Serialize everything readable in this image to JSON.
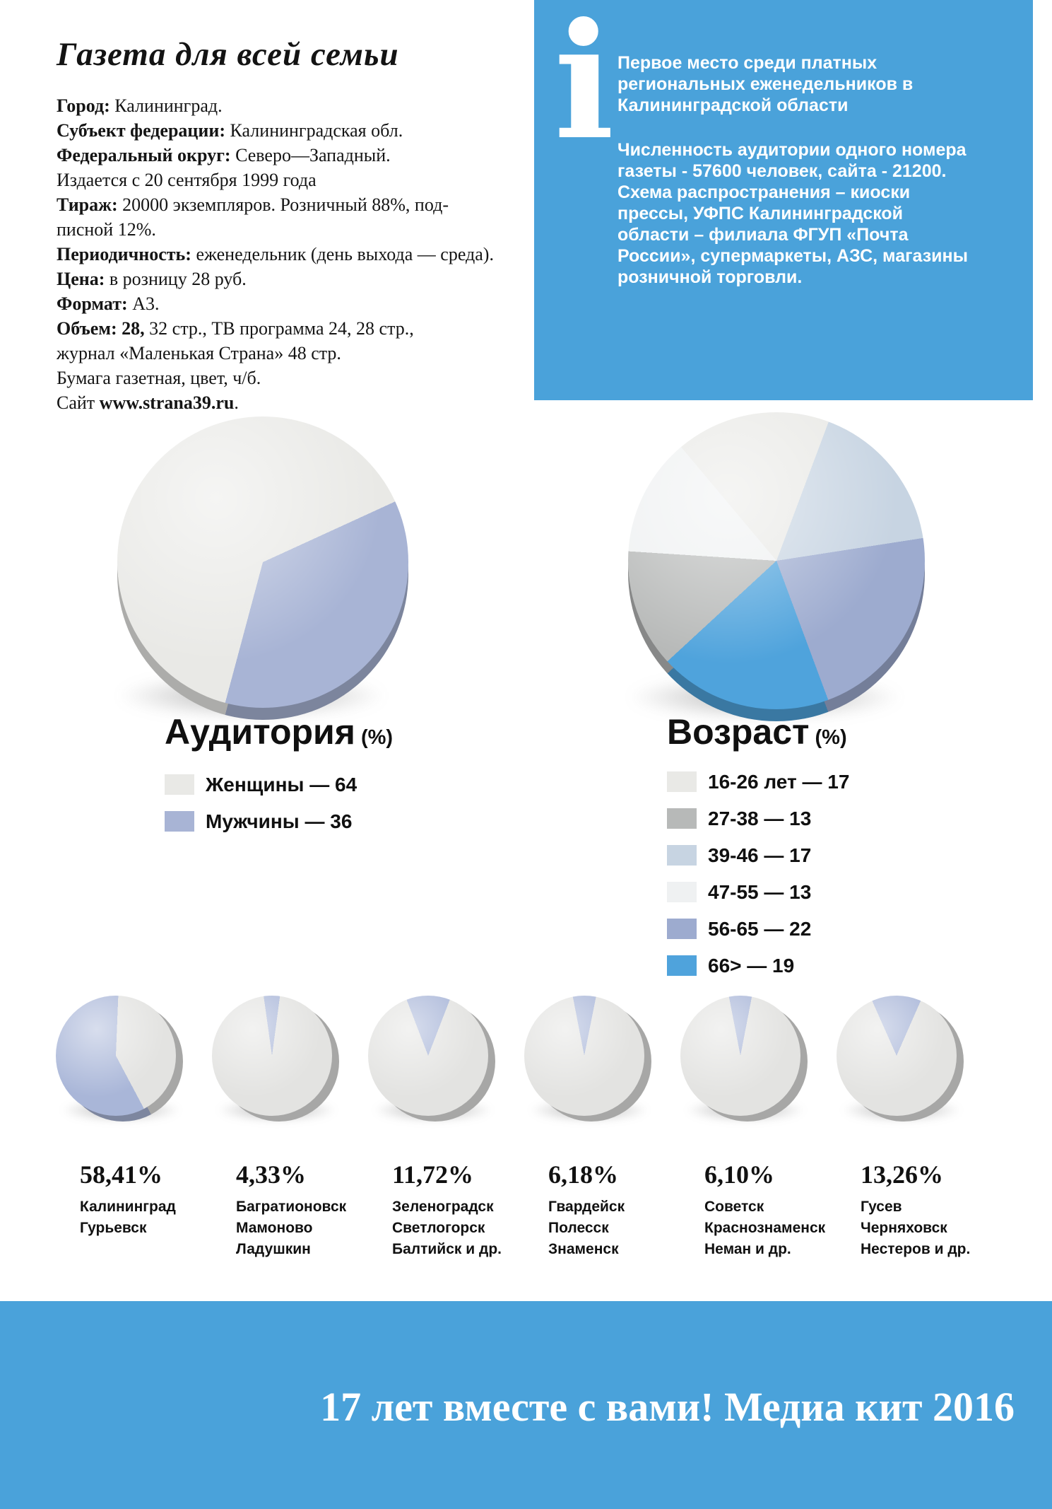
{
  "page": {
    "title": "Газета для всей семьи",
    "footer": "17 лет вместе с вами! Медиа кит 2016",
    "accent_blue": "#4aa2da"
  },
  "info_lines": [
    {
      "segs": [
        {
          "b": true,
          "t": "Город:"
        },
        {
          "t": " Калининград."
        }
      ]
    },
    {
      "segs": [
        {
          "b": true,
          "t": "Субъект федерации:"
        },
        {
          "t": " Калининградская обл."
        }
      ]
    },
    {
      "segs": [
        {
          "b": true,
          "t": "Федеральный округ:"
        },
        {
          "t": " Северо—Западный."
        }
      ]
    },
    {
      "segs": [
        {
          "t": "Издается с 20 сентября 1999 года"
        }
      ]
    },
    {
      "segs": [
        {
          "b": true,
          "t": "Тираж:"
        },
        {
          "t": " 20000 экземпляров. Розничный 88%, под-"
        }
      ]
    },
    {
      "segs": [
        {
          "t": "писной 12%."
        }
      ]
    },
    {
      "segs": [
        {
          "b": true,
          "t": "Периодичность:"
        },
        {
          "t": " еженедельник (день выхода — среда)."
        }
      ]
    },
    {
      "segs": [
        {
          "b": true,
          "t": "Цена:"
        },
        {
          "t": " в розницу 28 руб."
        }
      ]
    },
    {
      "segs": [
        {
          "b": true,
          "t": "Формат:"
        },
        {
          "t": " А3."
        }
      ]
    },
    {
      "segs": [
        {
          "b": true,
          "t": "Объем: 28,"
        },
        {
          "t": " 32 стр., ТВ программа 24, 28 стр.,"
        }
      ]
    },
    {
      "segs": [
        {
          "t": "журнал «Маленькая Страна» 48 стр."
        }
      ]
    },
    {
      "segs": [
        {
          "t": "Бумага газетная, цвет, ч/б."
        }
      ]
    },
    {
      "segs": [
        {
          "t": "Сайт "
        },
        {
          "b": true,
          "t": "www.strana39.ru",
          "link": true
        },
        {
          "t": "."
        }
      ]
    }
  ],
  "info_box": {
    "icon_glyph": "i",
    "p1": "Первое место среди платных\nрегиональных еженедельников в\nКалининградской области",
    "p2": "Численность аудитории одного номера\nгазеты - 57600 человек, сайта - 21200.\nСхема распространения – киоски\nпрессы, УФПС Калининградской\nобласти – филиала ФГУП «Почта\nРоссии», супермаркеты, АЗС, магазины\nрозничной торговли."
  },
  "chart_data": [
    {
      "type": "pie",
      "title": "Аудитория",
      "unit_label": "(%)",
      "legend_position": "below",
      "slices": [
        {
          "label": "Женщины",
          "value": 64,
          "color": "#e9e9e6"
        },
        {
          "label": "Мужчины",
          "value": 36,
          "color": "#a8b4d5"
        }
      ],
      "start_angle": 195,
      "draw_order": [
        0,
        1
      ]
    },
    {
      "type": "pie",
      "title": "Возраст",
      "unit_label": "(%)",
      "legend_position": "below",
      "slices": [
        {
          "label": "16-26 лет",
          "value": 17,
          "color": "#e9e9e6"
        },
        {
          "label": "27-38",
          "value": 13,
          "color": "#b7b9b8"
        },
        {
          "label": "39-46",
          "value": 17,
          "color": "#c7d4e2"
        },
        {
          "label": "47-55",
          "value": 13,
          "color": "#eff1f2"
        },
        {
          "label": "56-65",
          "value": 22,
          "color": "#9dabcf"
        },
        {
          "label": "66>",
          "value": 19,
          "color": "#4fa3dc"
        }
      ],
      "start_angle": 320,
      "draw_order": [
        0,
        2,
        4,
        5,
        1,
        3
      ]
    },
    {
      "type": "pie-group",
      "colors": {
        "slice": "#a9b6d8",
        "rest": "#e3e3e1"
      },
      "pies": [
        {
          "pct_label": "58,41%",
          "value": 58.41,
          "start_angle": 152,
          "cities": [
            "Калининград",
            "Гурьевск"
          ]
        },
        {
          "pct_label": "4,33%",
          "value": 4.33,
          "start_angle": -8,
          "cities": [
            "Багратионовск",
            "Мамоново",
            "Ладушкин"
          ]
        },
        {
          "pct_label": "11,72%",
          "value": 11.72,
          "start_angle": -21,
          "cities": [
            "Зеленоградск",
            "Светлогорск",
            "Балтийск и др."
          ]
        },
        {
          "pct_label": "6,18%",
          "value": 6.18,
          "start_angle": -11,
          "cities": [
            "Гвардейск",
            "Полесск",
            "Знаменск"
          ]
        },
        {
          "pct_label": "6,10%",
          "value": 6.1,
          "start_angle": -11,
          "cities": [
            "Советск",
            "Краснознаменск",
            "Неман и др."
          ]
        },
        {
          "pct_label": "13,26%",
          "value": 13.26,
          "start_angle": -24,
          "cities": [
            "Гусев",
            "Черняховск",
            "Нестеров и др."
          ]
        }
      ]
    }
  ]
}
